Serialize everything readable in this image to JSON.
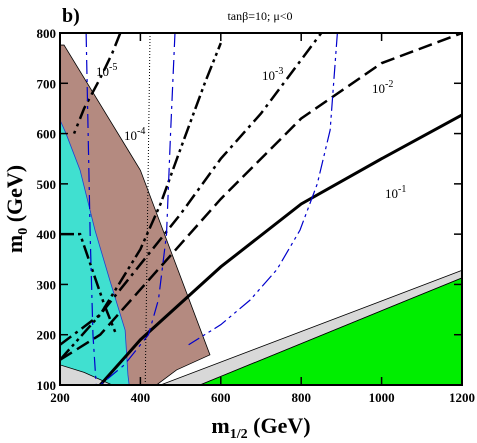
{
  "chart_data": {
    "type": "contour",
    "panel_label": "b)",
    "title": "tanβ=10;  μ<0",
    "x_label": {
      "base": "m",
      "sub": "1/2",
      "unit": " (GeV)"
    },
    "y_label": {
      "base": "m",
      "sub": "0",
      "unit": " (GeV)"
    },
    "xlim": [
      200,
      1200
    ],
    "xticks": [
      200,
      400,
      600,
      800,
      1000,
      1200
    ],
    "ylim": [
      100,
      800
    ],
    "yticks": [
      100,
      200,
      300,
      400,
      500,
      600,
      700,
      800
    ],
    "regions": [
      {
        "color": "#b48a80",
        "x": [
          200,
          210,
          400,
          573,
          490,
          440,
          200
        ],
        "y": [
          776,
          776,
          527,
          160,
          130,
          100,
          100
        ]
      },
      {
        "color": "#40e0d0",
        "x": [
          200,
          215,
          250,
          287,
          324,
          362,
          369,
          372,
          200
        ],
        "y": [
          627,
          600,
          527,
          408,
          308,
          209,
          120,
          100,
          100
        ]
      },
      {
        "color": "#d8d8d8",
        "x": [
          200,
          260,
          330,
          200
        ],
        "y": [
          140,
          125,
          100,
          100
        ]
      },
      {
        "color": "#d8d8d8",
        "x": [
          450,
          1200,
          1200,
          548
        ],
        "y": [
          100,
          328,
          313,
          100
        ]
      },
      {
        "color": "#00ee00",
        "x": [
          548,
          1200,
          1200
        ],
        "y": [
          100,
          313,
          100
        ]
      }
    ],
    "series": [
      {
        "color": "#000000",
        "dash": "solid",
        "width": 3,
        "x": [
          300,
          400,
          600,
          800,
          1000,
          1200
        ],
        "y": [
          100,
          190,
          335,
          460,
          550,
          637
        ]
      },
      {
        "color": "#000000",
        "dash": "dash",
        "width": 2.5,
        "x": [
          200,
          300,
          400,
          600,
          800,
          1000,
          1200
        ],
        "y": [
          150,
          200,
          290,
          470,
          630,
          740,
          800
        ]
      },
      {
        "color": "#000000",
        "dash": "dashdot",
        "width": 2.5,
        "x": [
          200,
          300,
          400,
          500,
          600,
          700,
          850
        ],
        "y": [
          180,
          240,
          340,
          440,
          550,
          640,
          800
        ]
      },
      {
        "color": "#000000",
        "dash": "dashdotdot",
        "width": 2.5,
        "x": [
          200,
          300,
          400,
          450,
          500,
          560,
          600
        ],
        "y": [
          150,
          240,
          370,
          460,
          570,
          700,
          780
        ]
      },
      {
        "color": "#000000",
        "dash": "dashdotdot",
        "width": 2.5,
        "x": [
          200,
          250,
          280,
          310,
          340
        ],
        "y": [
          400,
          400,
          330,
          260,
          200
        ]
      },
      {
        "color": "#000000",
        "dash": "dashdot",
        "width": 2.5,
        "x": [
          350,
          330,
          300,
          260,
          235
        ],
        "y": [
          800,
          760,
          710,
          650,
          600
        ]
      },
      {
        "color": "#0000cc",
        "dash": "dashdot",
        "width": 1.2,
        "x": [
          265,
          270,
          275,
          282,
          290
        ],
        "y": [
          800,
          600,
          400,
          200,
          100
        ]
      },
      {
        "color": "#0000cc",
        "dash": "dashdot",
        "width": 1.2,
        "x": [
          486,
          475,
          465,
          445,
          420,
          360,
          300
        ],
        "y": [
          800,
          600,
          400,
          270,
          200,
          140,
          100
        ]
      },
      {
        "color": "#0000cc",
        "dash": "dashdotdot",
        "width": 1.2,
        "x": [
          890,
          872,
          840,
          797,
          740,
          673,
          600,
          520
        ],
        "y": [
          800,
          607,
          500,
          408,
          330,
          269,
          220,
          180
        ]
      },
      {
        "color": "#000000",
        "dash": "dot",
        "width": 1,
        "x": [
          424,
          412
        ],
        "y": [
          800,
          100
        ]
      }
    ],
    "annotations": [
      {
        "base": "10",
        "sup": "-5"
      },
      {
        "base": "10",
        "sup": "-4"
      },
      {
        "base": "10",
        "sup": "-3"
      },
      {
        "base": "10",
        "sup": "-2"
      },
      {
        "base": "10",
        "sup": "-1"
      }
    ]
  }
}
